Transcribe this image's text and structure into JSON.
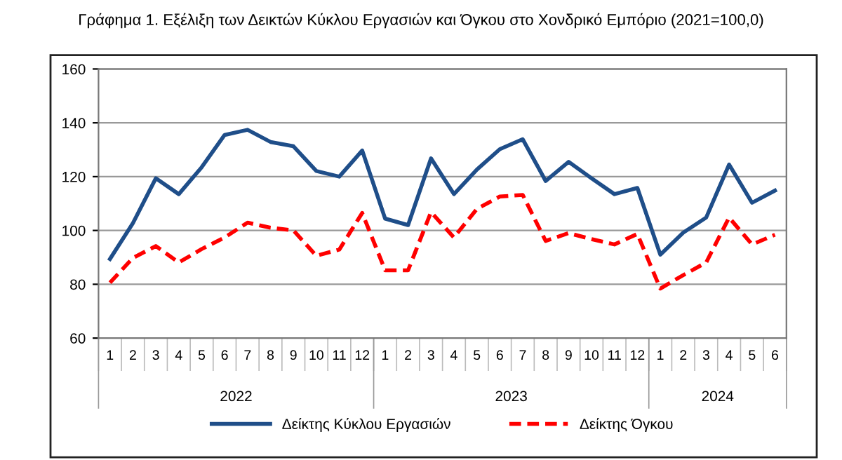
{
  "chart_data": {
    "type": "line",
    "title": "Γράφημα 1. Εξέλιξη των Δεικτών Κύκλου Εργασιών και Όγκου στο Χονδρικό Εμπόριο (2021=100,0)",
    "categories": [
      "1",
      "2",
      "3",
      "4",
      "5",
      "6",
      "7",
      "8",
      "9",
      "10",
      "11",
      "12",
      "1",
      "2",
      "3",
      "4",
      "5",
      "6",
      "7",
      "8",
      "9",
      "10",
      "11",
      "12",
      "1",
      "2",
      "3",
      "4",
      "5",
      "6"
    ],
    "annotations": [
      "2022",
      "2023",
      "2024"
    ],
    "series": [
      {
        "name": "Δείκτης Κύκλου Εργασιών",
        "color": "#1f4e89",
        "line_style": "solid",
        "values": [
          89.4,
          102.7,
          119.4,
          113.5,
          123.5,
          135.5,
          137.4,
          132.9,
          131.3,
          122.1,
          120,
          129.7,
          104.4,
          102,
          126.8,
          113.5,
          122.6,
          130.2,
          133.9,
          118.4,
          125.5,
          119.4,
          113.5,
          115.8,
          91,
          99.2,
          104.8,
          124.5,
          110.3,
          114.8
        ]
      },
      {
        "name": "Δείκτης Όγκου",
        "color": "#ff0000",
        "line_style": "dashed",
        "values": [
          80.6,
          89.8,
          94.2,
          88.1,
          93.1,
          97.4,
          102.9,
          101,
          100,
          90.6,
          92.9,
          106.5,
          85.2,
          85.2,
          106.8,
          97.4,
          108,
          112.6,
          113.2,
          96.1,
          99,
          96.8,
          94.8,
          98.7,
          78.4,
          83.4,
          88.1,
          104.8,
          94.8,
          98.4
        ]
      }
    ],
    "ylim": [
      60,
      160
    ],
    "yticks": [
      60,
      80,
      100,
      120,
      140,
      160
    ],
    "grid": "y",
    "legend": "bottom",
    "marker": "none"
  }
}
